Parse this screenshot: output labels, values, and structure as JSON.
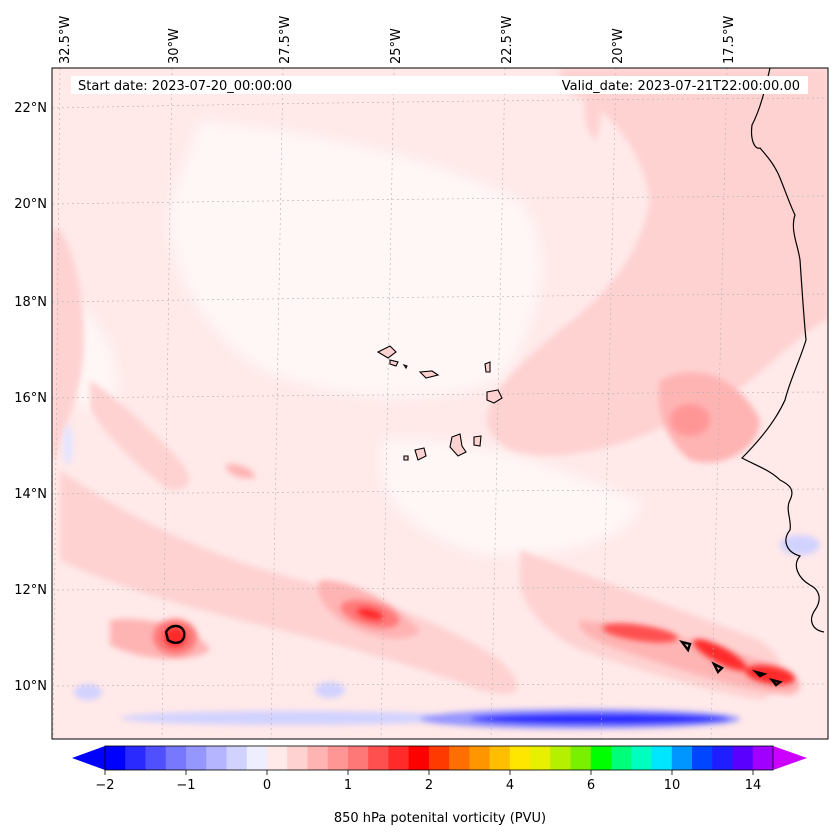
{
  "map": {
    "start_label": "Start date: 2023-07-20_00:00:00",
    "valid_label": "Valid_date: 2023-07-21T22:00:00.00",
    "lon_labels": [
      "32.5°W",
      "30°W",
      "27.5°W",
      "25°W",
      "22.5°W",
      "20°W",
      "17.5°W"
    ],
    "lat_labels": [
      "22°N",
      "20°N",
      "18°N",
      "16°N",
      "14°N",
      "12°N",
      "10°N"
    ]
  },
  "colorbar": {
    "label": "850 hPa potenital vorticity (PVU)",
    "ticks": [
      "−2",
      "−1",
      "0",
      "1",
      "2",
      "4",
      "6",
      "10",
      "14"
    ],
    "colors": [
      "#0000ff",
      "#2a2aff",
      "#5050ff",
      "#7878ff",
      "#9696ff",
      "#b4b4ff",
      "#d2d2ff",
      "#eeeeff",
      "#ffe9e9",
      "#ffd2d2",
      "#ffb4b4",
      "#ff9696",
      "#ff7878",
      "#ff5050",
      "#ff2a2a",
      "#ff0000",
      "#ff3a00",
      "#ff6e00",
      "#ff9600",
      "#ffbe00",
      "#ffe600",
      "#e6f000",
      "#b4f000",
      "#78f000",
      "#00ff00",
      "#00ff78",
      "#00ffbe",
      "#00e6ff",
      "#0096ff",
      "#0046ff",
      "#1e1eff",
      "#5a00ff",
      "#a000ff"
    ],
    "under_color": "#0000ff",
    "over_color": "#cc00ff"
  }
}
